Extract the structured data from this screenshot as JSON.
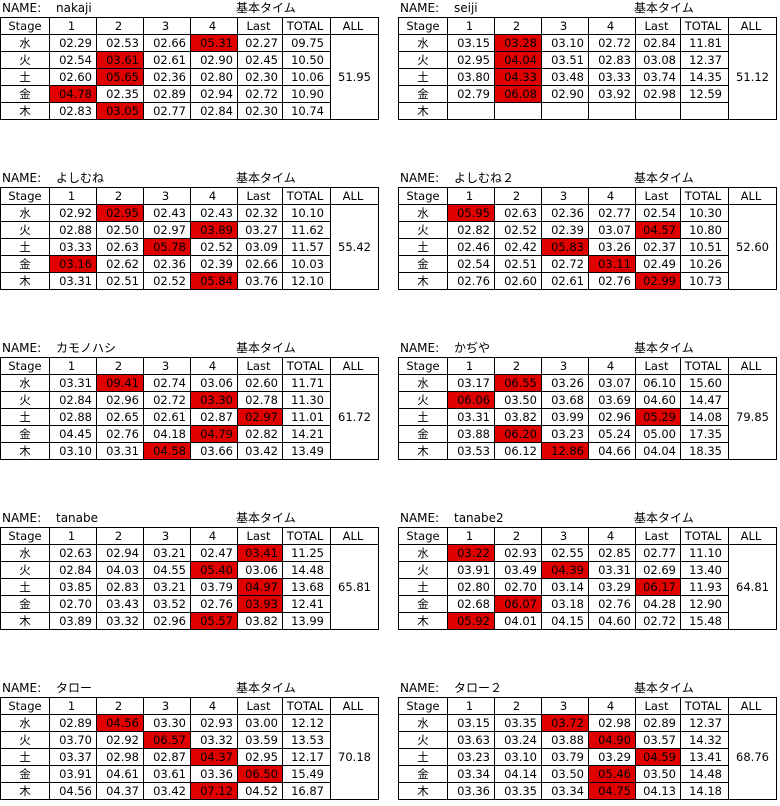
{
  "labels": {
    "name": "NAME:",
    "base_time": "基本タイム",
    "stage": "Stage",
    "cols": [
      "1",
      "2",
      "3",
      "4",
      "Last",
      "TOTAL",
      "ALL"
    ]
  },
  "highlight_color": "#e00000",
  "blocks": [
    {
      "name": "nakaji",
      "all": "51.95",
      "rows": [
        {
          "day": "水",
          "v": [
            "02.29",
            "02.53",
            "02.66",
            "05.31",
            "02.27"
          ],
          "total": "09.75",
          "hl": [
            3
          ]
        },
        {
          "day": "火",
          "v": [
            "02.54",
            "03.61",
            "02.61",
            "02.90",
            "02.45"
          ],
          "total": "10.50",
          "hl": [
            1
          ]
        },
        {
          "day": "土",
          "v": [
            "02.60",
            "05.65",
            "02.36",
            "02.80",
            "02.30"
          ],
          "total": "10.06",
          "hl": [
            1
          ]
        },
        {
          "day": "金",
          "v": [
            "04.78",
            "02.35",
            "02.89",
            "02.94",
            "02.72"
          ],
          "total": "10.90",
          "hl": [
            0
          ]
        },
        {
          "day": "木",
          "v": [
            "02.83",
            "03.05",
            "02.77",
            "02.84",
            "02.30"
          ],
          "total": "10.74",
          "hl": [
            1
          ]
        }
      ]
    },
    {
      "name": "seiji",
      "all": "51.12",
      "rows": [
        {
          "day": "水",
          "v": [
            "03.15",
            "03.28",
            "03.10",
            "02.72",
            "02.84"
          ],
          "total": "11.81",
          "hl": [
            1
          ]
        },
        {
          "day": "火",
          "v": [
            "02.95",
            "04.04",
            "03.51",
            "02.83",
            "03.08"
          ],
          "total": "12.37",
          "hl": [
            1
          ]
        },
        {
          "day": "土",
          "v": [
            "03.80",
            "04.33",
            "03.48",
            "03.33",
            "03.74"
          ],
          "total": "14.35",
          "hl": [
            1
          ]
        },
        {
          "day": "金",
          "v": [
            "02.79",
            "06.08",
            "02.90",
            "03.92",
            "02.98"
          ],
          "total": "12.59",
          "hl": [
            1
          ]
        },
        {
          "day": "木",
          "v": [
            "",
            "",
            "",
            "",
            ""
          ],
          "total": "",
          "hl": []
        }
      ]
    },
    {
      "name": "よしむね",
      "all": "55.42",
      "rows": [
        {
          "day": "水",
          "v": [
            "02.92",
            "02.95",
            "02.43",
            "02.43",
            "02.32"
          ],
          "total": "10.10",
          "hl": [
            1
          ]
        },
        {
          "day": "火",
          "v": [
            "02.88",
            "02.50",
            "02.97",
            "03.89",
            "03.27"
          ],
          "total": "11.62",
          "hl": [
            3
          ]
        },
        {
          "day": "土",
          "v": [
            "03.33",
            "02.63",
            "05.78",
            "02.52",
            "03.09"
          ],
          "total": "11.57",
          "hl": [
            2
          ]
        },
        {
          "day": "金",
          "v": [
            "03.16",
            "02.62",
            "02.36",
            "02.39",
            "02.66"
          ],
          "total": "10.03",
          "hl": [
            0
          ]
        },
        {
          "day": "木",
          "v": [
            "03.31",
            "02.51",
            "02.52",
            "05.84",
            "03.76"
          ],
          "total": "12.10",
          "hl": [
            3
          ]
        }
      ]
    },
    {
      "name": "よしむね２",
      "all": "52.60",
      "rows": [
        {
          "day": "水",
          "v": [
            "05.95",
            "02.63",
            "02.36",
            "02.77",
            "02.54"
          ],
          "total": "10.30",
          "hl": [
            0
          ]
        },
        {
          "day": "火",
          "v": [
            "02.82",
            "02.52",
            "02.39",
            "03.07",
            "04.57"
          ],
          "total": "10.80",
          "hl": [
            4
          ]
        },
        {
          "day": "土",
          "v": [
            "02.46",
            "02.42",
            "05.83",
            "03.26",
            "02.37"
          ],
          "total": "10.51",
          "hl": [
            2
          ]
        },
        {
          "day": "金",
          "v": [
            "02.54",
            "02.51",
            "02.72",
            "03.11",
            "02.49"
          ],
          "total": "10.26",
          "hl": [
            3
          ]
        },
        {
          "day": "木",
          "v": [
            "02.76",
            "02.60",
            "02.61",
            "02.76",
            "02.99"
          ],
          "total": "10.73",
          "hl": [
            4
          ]
        }
      ]
    },
    {
      "name": "カモノハシ",
      "all": "61.72",
      "rows": [
        {
          "day": "水",
          "v": [
            "03.31",
            "09.41",
            "02.74",
            "03.06",
            "02.60"
          ],
          "total": "11.71",
          "hl": [
            1
          ]
        },
        {
          "day": "火",
          "v": [
            "02.84",
            "02.96",
            "02.72",
            "03.30",
            "02.78"
          ],
          "total": "11.30",
          "hl": [
            3
          ]
        },
        {
          "day": "土",
          "v": [
            "02.88",
            "02.65",
            "02.61",
            "02.87",
            "02.97"
          ],
          "total": "11.01",
          "hl": [
            4
          ]
        },
        {
          "day": "金",
          "v": [
            "04.45",
            "02.76",
            "04.18",
            "04.79",
            "02.82"
          ],
          "total": "14.21",
          "hl": [
            3
          ]
        },
        {
          "day": "木",
          "v": [
            "03.10",
            "03.31",
            "04.58",
            "03.66",
            "03.42"
          ],
          "total": "13.49",
          "hl": [
            2
          ]
        }
      ]
    },
    {
      "name": "かぢや",
      "all": "79.85",
      "rows": [
        {
          "day": "水",
          "v": [
            "03.17",
            "06.55",
            "03.26",
            "03.07",
            "06.10"
          ],
          "total": "15.60",
          "hl": [
            1
          ]
        },
        {
          "day": "火",
          "v": [
            "06.06",
            "03.50",
            "03.68",
            "03.69",
            "04.60"
          ],
          "total": "14.47",
          "hl": [
            0
          ]
        },
        {
          "day": "土",
          "v": [
            "03.31",
            "03.82",
            "03.99",
            "02.96",
            "05.29"
          ],
          "total": "14.08",
          "hl": [
            4
          ]
        },
        {
          "day": "金",
          "v": [
            "03.88",
            "06.20",
            "03.23",
            "05.24",
            "05.00"
          ],
          "total": "17.35",
          "hl": [
            1
          ]
        },
        {
          "day": "木",
          "v": [
            "03.53",
            "06.12",
            "12.86",
            "04.66",
            "04.04"
          ],
          "total": "18.35",
          "hl": [
            2
          ]
        }
      ]
    },
    {
      "name": "tanabe",
      "all": "65.81",
      "rows": [
        {
          "day": "水",
          "v": [
            "02.63",
            "02.94",
            "03.21",
            "02.47",
            "03.41"
          ],
          "total": "11.25",
          "hl": [
            4
          ]
        },
        {
          "day": "火",
          "v": [
            "02.84",
            "04.03",
            "04.55",
            "05.40",
            "03.06"
          ],
          "total": "14.48",
          "hl": [
            3
          ]
        },
        {
          "day": "土",
          "v": [
            "03.85",
            "02.83",
            "03.21",
            "03.79",
            "04.97"
          ],
          "total": "13.68",
          "hl": [
            4
          ]
        },
        {
          "day": "金",
          "v": [
            "02.70",
            "03.43",
            "03.52",
            "02.76",
            "03.93"
          ],
          "total": "12.41",
          "hl": [
            4
          ]
        },
        {
          "day": "木",
          "v": [
            "03.89",
            "03.32",
            "02.96",
            "05.57",
            "03.82"
          ],
          "total": "13.99",
          "hl": [
            3
          ]
        }
      ]
    },
    {
      "name": "tanabe2",
      "all": "64.81",
      "rows": [
        {
          "day": "水",
          "v": [
            "03.22",
            "02.93",
            "02.55",
            "02.85",
            "02.77"
          ],
          "total": "11.10",
          "hl": [
            0
          ]
        },
        {
          "day": "火",
          "v": [
            "03.91",
            "03.49",
            "04.39",
            "03.31",
            "02.69"
          ],
          "total": "13.40",
          "hl": [
            2
          ]
        },
        {
          "day": "土",
          "v": [
            "02.80",
            "02.70",
            "03.14",
            "03.29",
            "06.17"
          ],
          "total": "11.93",
          "hl": [
            4
          ]
        },
        {
          "day": "金",
          "v": [
            "02.68",
            "06.07",
            "03.18",
            "02.76",
            "04.28"
          ],
          "total": "12.90",
          "hl": [
            1
          ]
        },
        {
          "day": "木",
          "v": [
            "05.92",
            "04.01",
            "04.15",
            "04.60",
            "02.72"
          ],
          "total": "15.48",
          "hl": [
            0
          ]
        }
      ]
    },
    {
      "name": "タロー",
      "all": "70.18",
      "rows": [
        {
          "day": "水",
          "v": [
            "02.89",
            "04.56",
            "03.30",
            "02.93",
            "03.00"
          ],
          "total": "12.12",
          "hl": [
            1
          ]
        },
        {
          "day": "火",
          "v": [
            "03.70",
            "02.92",
            "06.57",
            "03.32",
            "03.59"
          ],
          "total": "13.53",
          "hl": [
            2
          ]
        },
        {
          "day": "土",
          "v": [
            "03.37",
            "02.98",
            "02.87",
            "04.37",
            "02.95"
          ],
          "total": "12.17",
          "hl": [
            3
          ]
        },
        {
          "day": "金",
          "v": [
            "03.91",
            "04.61",
            "03.61",
            "03.36",
            "06.50"
          ],
          "total": "15.49",
          "hl": [
            4
          ]
        },
        {
          "day": "木",
          "v": [
            "04.56",
            "04.37",
            "03.42",
            "07.12",
            "04.52"
          ],
          "total": "16.87",
          "hl": [
            3
          ]
        }
      ]
    },
    {
      "name": "タロー２",
      "all": "68.76",
      "rows": [
        {
          "day": "水",
          "v": [
            "03.15",
            "03.35",
            "03.72",
            "02.98",
            "02.89"
          ],
          "total": "12.37",
          "hl": [
            2
          ]
        },
        {
          "day": "火",
          "v": [
            "03.63",
            "03.24",
            "03.88",
            "04.90",
            "03.57"
          ],
          "total": "14.32",
          "hl": [
            3
          ]
        },
        {
          "day": "土",
          "v": [
            "03.23",
            "03.10",
            "03.79",
            "03.29",
            "04.59"
          ],
          "total": "13.41",
          "hl": [
            4
          ]
        },
        {
          "day": "金",
          "v": [
            "03.34",
            "04.14",
            "03.50",
            "05.46",
            "03.50"
          ],
          "total": "14.48",
          "hl": [
            3
          ]
        },
        {
          "day": "木",
          "v": [
            "03.36",
            "03.35",
            "03.34",
            "04.75",
            "04.13"
          ],
          "total": "14.18",
          "hl": [
            3
          ]
        }
      ]
    }
  ]
}
